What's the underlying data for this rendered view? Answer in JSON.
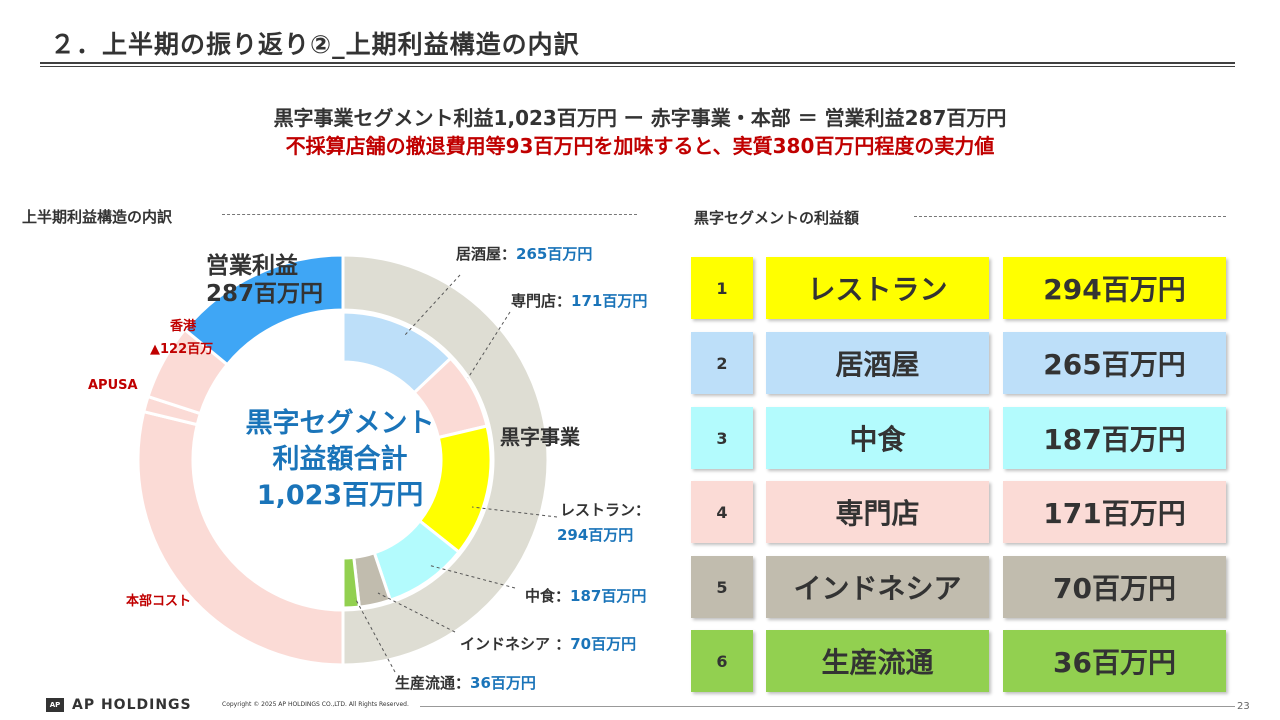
{
  "header": {
    "title": "２．上半期の振り返り②_上期利益構造の内訳"
  },
  "summary": {
    "line1": "黒字事業セグメント利益1,023百万円 ー 赤字事業・本部 ＝ 営業利益287百万円",
    "line2": "不採算店舗の撤退費用等93百万円を加味すると、実質380百万円程度の実力値"
  },
  "left_section": {
    "heading": "上半期利益構造の内訳"
  },
  "right_section": {
    "heading": "黒字セグメントの利益額"
  },
  "donut": {
    "center_line1": "黒字セグメント",
    "center_line2": "利益額合計",
    "center_line3": "1,023百万円",
    "op_profit_label": "営業利益",
    "op_profit_value": "287百万円",
    "hongkong_label": "香港",
    "hongkong_value": "▲122百万",
    "apusa_label": "APUSA",
    "hq_cost_label": "本部コスト",
    "black_biz_label": "黒字事業",
    "izakaya_label": "居酒屋：",
    "izakaya_value": "265百万円",
    "specialty_label": "専門店：",
    "specialty_value": "171百万円",
    "restaurant_label": "レストラン：",
    "restaurant_value": "294百万円",
    "nakashoku_label": "中食：",
    "nakashoku_value": "187百万円",
    "indonesia_label": "インドネシア ：",
    "indonesia_value": "70百万円",
    "production_label": "生産流通：",
    "production_value": "36百万円"
  },
  "ranking": [
    {
      "rank": "1",
      "name": "レストラン",
      "value": "294百万円",
      "color": "#ffff00"
    },
    {
      "rank": "2",
      "name": "居酒屋",
      "value": "265百万円",
      "color": "#bddff9"
    },
    {
      "rank": "3",
      "name": "中食",
      "value": "187百万円",
      "color": "#b3fbfd"
    },
    {
      "rank": "4",
      "name": "専門店",
      "value": "171百万円",
      "color": "#fbdbd6"
    },
    {
      "rank": "5",
      "name": "インドネシア",
      "value": "70百万円",
      "color": "#c1bcae"
    },
    {
      "rank": "6",
      "name": "生産流通",
      "value": "36百万円",
      "color": "#92d050"
    }
  ],
  "chart_data": {
    "type": "pie",
    "rings": [
      {
        "name": "",
        "segments": [
          {
            "label": "営業利益",
            "value": 287,
            "color": "#3fa6f5"
          },
          {
            "label": "香港",
            "value": 122,
            "color": "#fbdbd6"
          },
          {
            "label": "APUSA",
            "value": 25,
            "color": "#fbdbd6"
          },
          {
            "label": "本部コスト",
            "value": 589,
            "color": "#fbdbd6"
          },
          {
            "label": "黒字事業",
            "value": 1023,
            "color": "#deddd3"
          }
        ]
      },
      {
        "name": "",
        "segments": [
          {
            "label": "居酒屋",
            "value": 265,
            "color": "#bddff9"
          },
          {
            "label": "専門店",
            "value": 171,
            "color": "#fbdbd6"
          },
          {
            "label": "レストラン",
            "value": 294,
            "color": "#ffff00"
          },
          {
            "label": "中食",
            "value": 187,
            "color": "#b3fbfd"
          },
          {
            "label": "インドネシア",
            "value": 70,
            "color": "#c1bcae"
          },
          {
            "label": "生産流通",
            "value": 36,
            "color": "#92d050"
          }
        ]
      }
    ]
  },
  "footer": {
    "logo_mark": "AP",
    "logo_text": "AP HOLDINGS",
    "copyright": "Copyright © 2025 AP HOLDINGS CO.,LTD.  All Rights Reserved.",
    "page_number": "23"
  }
}
